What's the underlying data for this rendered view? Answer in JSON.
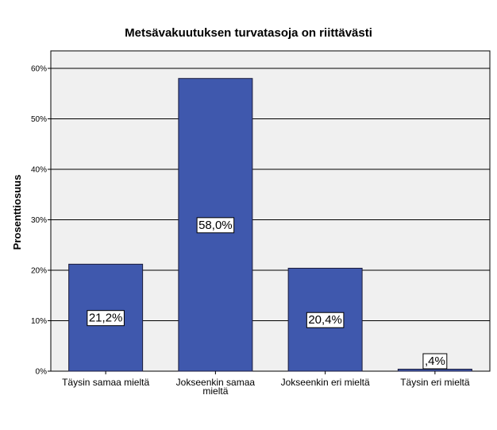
{
  "chart_data": {
    "type": "bar",
    "title": "Metsävakuutuksen turvatasoja on riittävästi",
    "xlabel": "",
    "ylabel": "Prosenttiosuus",
    "categories": [
      [
        "Täysin samaa mieltä"
      ],
      [
        "Jokseenkin samaa",
        "mieltä"
      ],
      [
        "Jokseenkin eri mieltä"
      ],
      [
        "Täysin eri mieltä"
      ]
    ],
    "values": [
      21.2,
      58.0,
      20.4,
      0.4
    ],
    "data_labels": [
      "21,2%",
      "58,0%",
      "20,4%",
      ",4%"
    ],
    "ylim": [
      0,
      60
    ],
    "yticks": [
      0,
      10,
      20,
      30,
      40,
      50,
      60
    ],
    "ytick_labels": [
      "0%",
      "10%",
      "20%",
      "30%",
      "40%",
      "50%",
      "60%"
    ],
    "grid": true,
    "colors": {
      "bar": "#3f58ad",
      "bar_edge": "#1c1c3a",
      "plot_bg": "#f0f0f0",
      "grid": "#000000"
    }
  }
}
